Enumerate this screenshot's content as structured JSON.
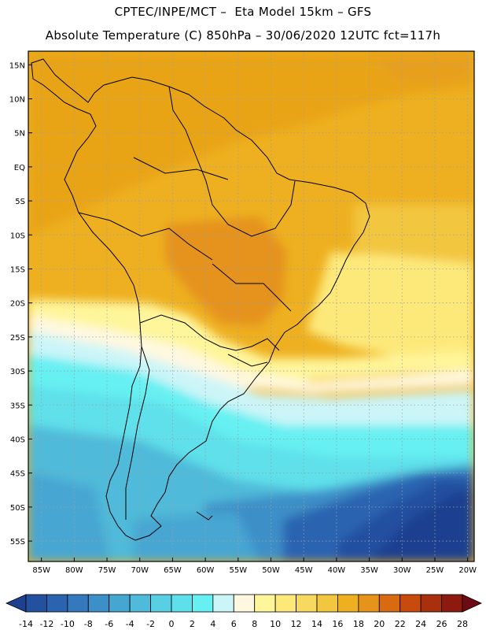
{
  "header": {
    "line1": "CPTEC/INPE/MCT –  Eta Model 15km – GFS",
    "line2": "Absolute Temperature (C) 850hPa – 30/06/2020 12UTC fct=117h"
  },
  "map": {
    "lat_labels": [
      "15N",
      "10N",
      "5N",
      "EQ",
      "5S",
      "10S",
      "15S",
      "20S",
      "25S",
      "30S",
      "35S",
      "40S",
      "45S",
      "50S",
      "55S"
    ],
    "lon_labels": [
      "85W",
      "80W",
      "75W",
      "70W",
      "65W",
      "60W",
      "55W",
      "50W",
      "45W",
      "40W",
      "35W",
      "30W",
      "25W",
      "20W"
    ]
  },
  "legend": {
    "labels": [
      "-14",
      "-12",
      "-10",
      "-8",
      "-6",
      "-4",
      "-2",
      "0",
      "2",
      "4",
      "6",
      "8",
      "10",
      "12",
      "14",
      "16",
      "18",
      "20",
      "22",
      "24",
      "26",
      "28"
    ],
    "colors": [
      "#1f3f8f",
      "#2450a0",
      "#2b63b0",
      "#3478bd",
      "#3d8fc8",
      "#46a6d2",
      "#4fbad9",
      "#58cfe3",
      "#5ee0ea",
      "#66f0f2",
      "#ccf5f8",
      "#fff8e0",
      "#fff59a",
      "#fde97a",
      "#f8d960",
      "#f3c640",
      "#eeb020",
      "#e5931a",
      "#d86a10",
      "#c84a0c",
      "#a8300c",
      "#8c1a0e",
      "#6e0a14"
    ]
  }
}
